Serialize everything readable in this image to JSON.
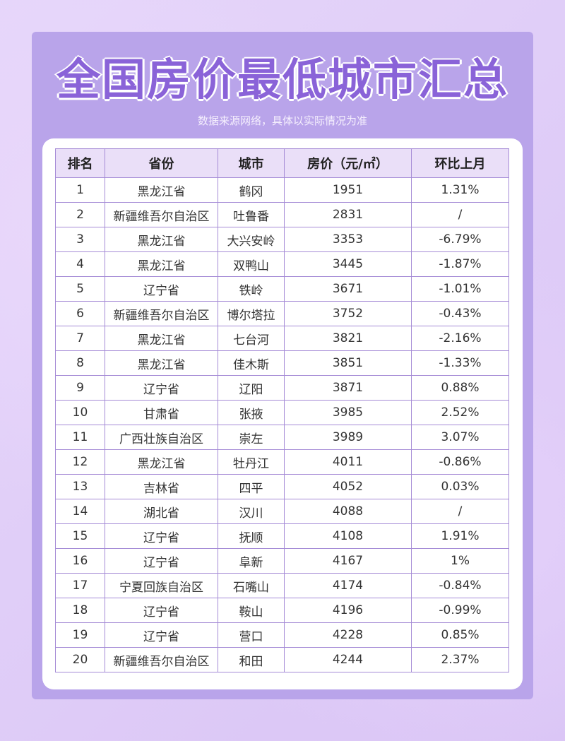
{
  "header": {
    "title": "全国房价最低城市汇总",
    "subtitle": "数据来源网络，具体以实际情况为准"
  },
  "table": {
    "header": [
      "排名",
      "省份",
      "城市",
      "房价（元/㎡）",
      "环比上月"
    ],
    "rows": [
      [
        1,
        "黑龙江省",
        "鹤冈",
        1951,
        "1.31%"
      ],
      [
        2,
        "新疆维吾尔自治区",
        "吐鲁番",
        2831,
        "/"
      ],
      [
        3,
        "黑龙江省",
        "大兴安岭",
        3353,
        "-6.79%"
      ],
      [
        4,
        "黑龙江省",
        "双鸭山",
        3445,
        "-1.87%"
      ],
      [
        5,
        "辽宁省",
        "铁岭",
        3671,
        "-1.01%"
      ],
      [
        6,
        "新疆维吾尔自治区",
        "博尔塔拉",
        3752,
        "-0.43%"
      ],
      [
        7,
        "黑龙江省",
        "七台河",
        3821,
        "-2.16%"
      ],
      [
        8,
        "黑龙江省",
        "佳木斯",
        3851,
        "-1.33%"
      ],
      [
        9,
        "辽宁省",
        "辽阳",
        3871,
        "0.88%"
      ],
      [
        10,
        "甘肃省",
        "张掖",
        3985,
        "2.52%"
      ],
      [
        11,
        "广西壮族自治区",
        "崇左",
        3989,
        "3.07%"
      ],
      [
        12,
        "黑龙江省",
        "牡丹江",
        4011,
        "-0.86%"
      ],
      [
        13,
        "吉林省",
        "四平",
        4052,
        "0.03%"
      ],
      [
        14,
        "湖北省",
        "汉川",
        4088,
        "/"
      ],
      [
        15,
        "辽宁省",
        "抚顺",
        4108,
        "1.91%"
      ],
      [
        16,
        "辽宁省",
        "阜新",
        4167,
        "1%"
      ],
      [
        17,
        "宁夏回族自治区",
        "石嘴山",
        4174,
        "-0.84%"
      ],
      [
        18,
        "辽宁省",
        "鞍山",
        4196,
        "-0.99%"
      ],
      [
        19,
        "辽宁省",
        "营口",
        4228,
        "0.85%"
      ],
      [
        20,
        "新疆维吾尔自治区",
        "和田",
        4244,
        "2.37%"
      ]
    ]
  }
}
